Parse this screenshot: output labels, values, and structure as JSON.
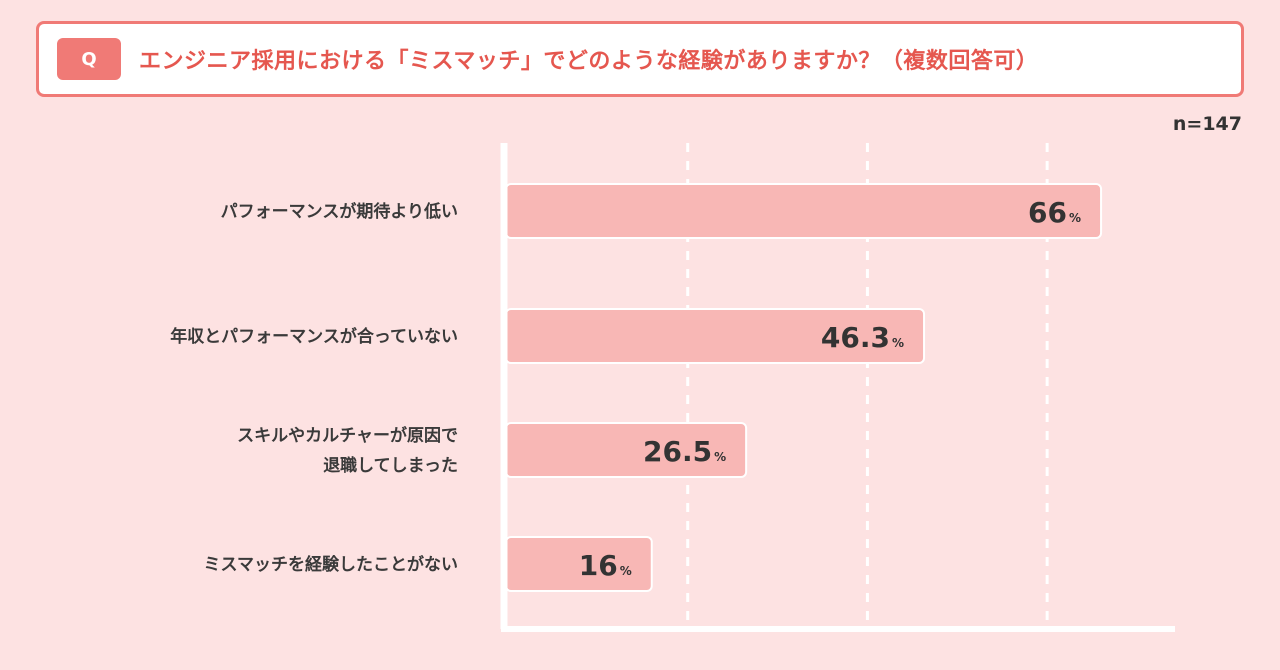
{
  "question": {
    "badge": "Q",
    "text": "エンジニア採用における「ミスマッチ」でどのような経験がありますか？（複数回答可）"
  },
  "sample_size": "n=147",
  "chart_data": {
    "type": "bar",
    "orientation": "horizontal",
    "categories": [
      [
        "パフォーマンスが期待より低い"
      ],
      [
        "年収とパフォーマンスが合っていない"
      ],
      [
        "スキルやカルチャーが原因で",
        "退職してしまった"
      ],
      [
        "ミスマッチを経験したことがない"
      ]
    ],
    "values": [
      66,
      46.3,
      26.5,
      16
    ],
    "value_labels": [
      "66",
      "46.3",
      "26.5",
      "16"
    ],
    "unit": "%",
    "xlim": [
      0,
      70
    ],
    "gridlines": [
      20,
      40,
      60
    ],
    "grid": true,
    "colors": {
      "bar": "#f8b7b5",
      "bar_border": "#ffffff",
      "axis": "#ffffff",
      "grid": "#ffffff"
    }
  }
}
